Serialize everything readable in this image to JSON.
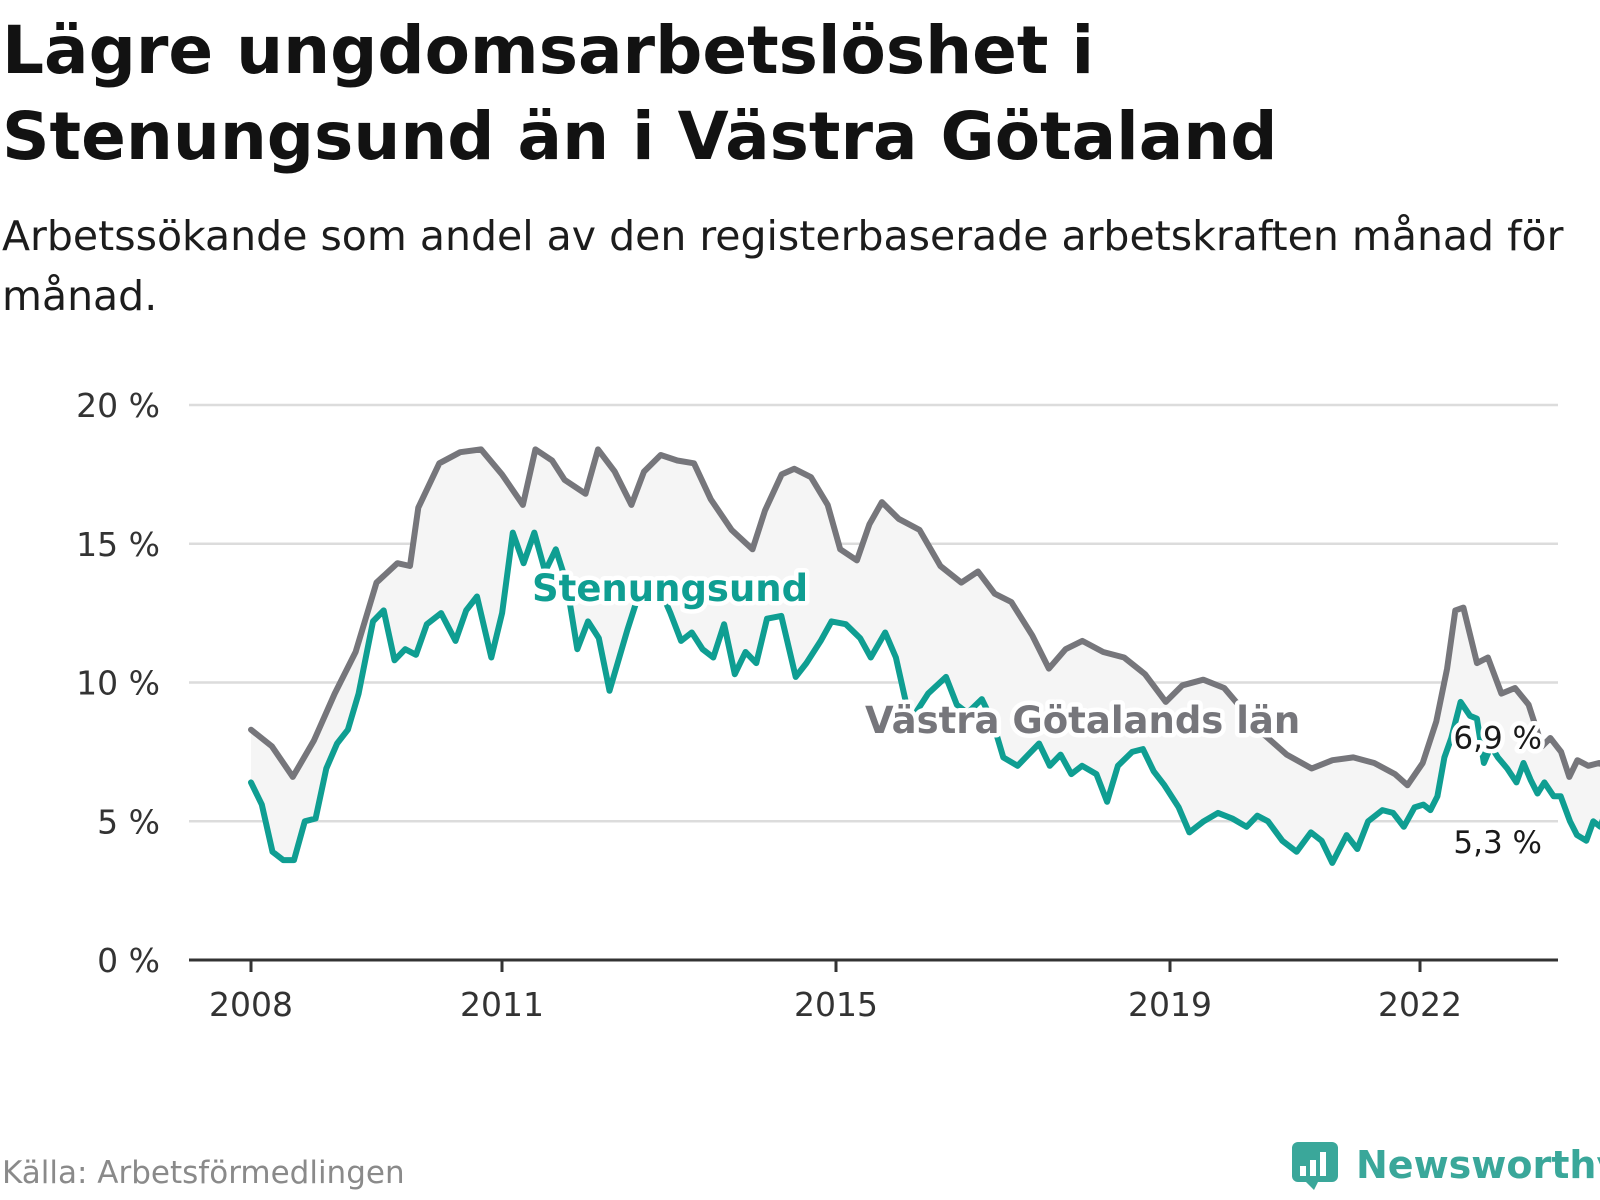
{
  "title": "Lägre ungdomsarbetslöshet i Stenungsund än i Västra Götaland",
  "subtitle": "Arbetssökande som andel av den registerbaserade arbetskraften månad för månad.",
  "source": "Källa: Arbetsförmedlingen",
  "brand": "Newsworthy",
  "colors": {
    "stenungsund": "#0f9e92",
    "vastra": "#76767b",
    "grid": "#dcdcdc",
    "band": "#f5f5f5",
    "brand": "#3aa79a"
  },
  "chart_data": {
    "type": "line",
    "title": "Lägre ungdomsarbetslöshet i Stenungsund än i Västra Götaland",
    "xlabel": "",
    "ylabel": "",
    "ylim": [
      0,
      20
    ],
    "yticks": [
      0,
      5,
      10,
      15,
      20
    ],
    "ytick_labels": [
      "0 %",
      "5 %",
      "10 %",
      "15 %",
      "20 %"
    ],
    "xticks": [
      2008,
      2011,
      2015,
      2019,
      2022
    ],
    "xtick_labels": [
      "2008",
      "2011",
      "2015",
      "2019",
      "2022"
    ],
    "series": [
      {
        "name": "Västra Götalands län",
        "label": "Västra Götalands län",
        "end_label": "6,9 %",
        "points": [
          [
            2008.0,
            8.3
          ],
          [
            2008.25,
            7.7
          ],
          [
            2008.5,
            6.6
          ],
          [
            2008.75,
            7.9
          ],
          [
            2009.0,
            9.6
          ],
          [
            2009.25,
            11.1
          ],
          [
            2009.5,
            13.6
          ],
          [
            2009.75,
            14.3
          ],
          [
            2009.9,
            14.2
          ],
          [
            2010.0,
            16.3
          ],
          [
            2010.25,
            17.9
          ],
          [
            2010.5,
            18.3
          ],
          [
            2010.75,
            18.4
          ],
          [
            2011.0,
            17.5
          ],
          [
            2011.25,
            16.4
          ],
          [
            2011.4,
            18.4
          ],
          [
            2011.6,
            18.0
          ],
          [
            2011.75,
            17.3
          ],
          [
            2012.0,
            16.8
          ],
          [
            2012.15,
            18.4
          ],
          [
            2012.35,
            17.6
          ],
          [
            2012.55,
            16.4
          ],
          [
            2012.7,
            17.6
          ],
          [
            2012.9,
            18.2
          ],
          [
            2013.1,
            18.0
          ],
          [
            2013.3,
            17.9
          ],
          [
            2013.5,
            16.6
          ],
          [
            2013.75,
            15.5
          ],
          [
            2014.0,
            14.8
          ],
          [
            2014.15,
            16.2
          ],
          [
            2014.35,
            17.5
          ],
          [
            2014.5,
            17.7
          ],
          [
            2014.7,
            17.4
          ],
          [
            2014.9,
            16.4
          ],
          [
            2015.05,
            14.8
          ],
          [
            2015.25,
            14.4
          ],
          [
            2015.4,
            15.7
          ],
          [
            2015.55,
            16.5
          ],
          [
            2015.75,
            15.9
          ],
          [
            2016.0,
            15.5
          ],
          [
            2016.25,
            14.2
          ],
          [
            2016.5,
            13.6
          ],
          [
            2016.7,
            14.0
          ],
          [
            2016.9,
            13.2
          ],
          [
            2017.1,
            12.9
          ],
          [
            2017.35,
            11.7
          ],
          [
            2017.55,
            10.5
          ],
          [
            2017.75,
            11.2
          ],
          [
            2017.95,
            11.5
          ],
          [
            2018.2,
            11.1
          ],
          [
            2018.45,
            10.9
          ],
          [
            2018.7,
            10.3
          ],
          [
            2018.95,
            9.3
          ],
          [
            2019.15,
            9.9
          ],
          [
            2019.4,
            10.1
          ],
          [
            2019.65,
            9.8
          ],
          [
            2019.85,
            9.1
          ],
          [
            2020.1,
            8.2
          ],
          [
            2020.4,
            7.4
          ],
          [
            2020.7,
            6.9
          ],
          [
            2020.95,
            7.2
          ],
          [
            2021.2,
            7.3
          ],
          [
            2021.45,
            7.1
          ],
          [
            2021.7,
            6.7
          ],
          [
            2021.85,
            6.3
          ],
          [
            2022.05,
            7.1
          ],
          [
            2022.3,
            8.6
          ],
          [
            2022.5,
            10.5
          ],
          [
            2022.65,
            12.6
          ],
          [
            2022.8,
            12.7
          ],
          [
            2023.05,
            10.7
          ],
          [
            2023.25,
            10.9
          ],
          [
            2023.5,
            9.6
          ],
          [
            2023.75,
            9.8
          ],
          [
            2024.0,
            9.2
          ],
          [
            2024.25,
            7.7
          ],
          [
            2024.4,
            8.0
          ],
          [
            2024.6,
            7.5
          ],
          [
            2024.75,
            6.6
          ],
          [
            2024.9,
            7.2
          ],
          [
            2025.1,
            7.0
          ],
          [
            2025.3,
            7.1
          ],
          [
            2025.5,
            6.9
          ],
          [
            2025.75,
            6.9
          ]
        ]
      },
      {
        "name": "Stenungsund",
        "label": "Stenungsund",
        "end_label": "5,3 %",
        "points": [
          [
            2008.0,
            6.4
          ],
          [
            2008.15,
            5.6
          ],
          [
            2008.3,
            3.9
          ],
          [
            2008.45,
            3.6
          ],
          [
            2008.6,
            3.6
          ],
          [
            2008.75,
            5.0
          ],
          [
            2008.9,
            5.1
          ],
          [
            2009.05,
            6.9
          ],
          [
            2009.2,
            7.8
          ],
          [
            2009.35,
            8.3
          ],
          [
            2009.5,
            9.6
          ],
          [
            2009.7,
            12.2
          ],
          [
            2009.85,
            12.6
          ],
          [
            2010.0,
            10.8
          ],
          [
            2010.15,
            11.2
          ],
          [
            2010.3,
            11.0
          ],
          [
            2010.45,
            12.1
          ],
          [
            2010.65,
            12.5
          ],
          [
            2010.85,
            11.5
          ],
          [
            2011.0,
            12.6
          ],
          [
            2011.15,
            13.1
          ],
          [
            2011.35,
            10.9
          ],
          [
            2011.5,
            12.5
          ],
          [
            2011.65,
            15.4
          ],
          [
            2011.8,
            14.3
          ],
          [
            2011.95,
            15.4
          ],
          [
            2012.1,
            14.0
          ],
          [
            2012.25,
            14.8
          ],
          [
            2012.4,
            13.6
          ],
          [
            2012.55,
            11.2
          ],
          [
            2012.7,
            12.2
          ],
          [
            2012.85,
            11.6
          ],
          [
            2013.0,
            9.7
          ],
          [
            2013.25,
            11.9
          ],
          [
            2013.45,
            13.5
          ],
          [
            2013.65,
            13.7
          ],
          [
            2013.85,
            12.5
          ],
          [
            2014.0,
            11.5
          ],
          [
            2014.15,
            11.8
          ],
          [
            2014.3,
            11.2
          ],
          [
            2014.45,
            10.9
          ],
          [
            2014.6,
            12.1
          ],
          [
            2014.75,
            10.3
          ],
          [
            2014.9,
            11.1
          ],
          [
            2015.05,
            10.7
          ],
          [
            2015.2,
            12.3
          ],
          [
            2015.4,
            12.4
          ],
          [
            2015.6,
            10.2
          ],
          [
            2015.75,
            10.7
          ],
          [
            2015.95,
            11.5
          ],
          [
            2016.1,
            12.2
          ],
          [
            2016.3,
            12.1
          ],
          [
            2016.5,
            11.6
          ],
          [
            2016.65,
            10.9
          ],
          [
            2016.85,
            11.8
          ],
          [
            2017.0,
            10.9
          ],
          [
            2017.2,
            8.6
          ],
          [
            2017.45,
            9.6
          ],
          [
            2017.7,
            10.2
          ],
          [
            2017.85,
            9.2
          ],
          [
            2018.0,
            8.9
          ],
          [
            2018.2,
            9.4
          ],
          [
            2018.35,
            8.6
          ],
          [
            2018.5,
            7.3
          ],
          [
            2018.7,
            7.0
          ],
          [
            2018.85,
            7.4
          ],
          [
            2019.0,
            7.8
          ],
          [
            2019.15,
            7.0
          ],
          [
            2019.3,
            7.4
          ],
          [
            2019.45,
            6.7
          ],
          [
            2019.6,
            7.0
          ],
          [
            2019.8,
            6.7
          ],
          [
            2019.95,
            5.7
          ],
          [
            2020.1,
            7.0
          ],
          [
            2020.3,
            7.5
          ],
          [
            2020.45,
            7.6
          ],
          [
            2020.6,
            6.8
          ],
          [
            2020.75,
            6.3
          ],
          [
            2020.95,
            5.5
          ],
          [
            2021.1,
            4.6
          ],
          [
            2021.3,
            5.0
          ],
          [
            2021.5,
            5.3
          ],
          [
            2021.7,
            5.1
          ],
          [
            2021.9,
            4.8
          ],
          [
            2022.05,
            5.2
          ],
          [
            2022.2,
            5.0
          ],
          [
            2022.4,
            4.3
          ],
          [
            2022.6,
            3.9
          ],
          [
            2022.8,
            4.6
          ],
          [
            2022.95,
            4.3
          ],
          [
            2023.1,
            3.5
          ],
          [
            2023.3,
            4.5
          ],
          [
            2023.45,
            4.0
          ],
          [
            2023.6,
            5.0
          ],
          [
            2023.8,
            5.4
          ],
          [
            2023.95,
            5.3
          ],
          [
            2024.1,
            4.8
          ],
          [
            2024.25,
            5.5
          ],
          [
            2024.4,
            5.6
          ],
          [
            2024.55,
            5.4
          ],
          [
            2024.7,
            5.9
          ],
          [
            2024.85,
            7.3
          ],
          [
            2025.0,
            8.0
          ],
          [
            2025.2,
            9.3
          ],
          [
            2025.4,
            8.8
          ],
          [
            2025.55,
            8.7
          ],
          [
            2025.7,
            7.1
          ],
          [
            2025.85,
            7.7
          ],
          [
            2026.0,
            7.3
          ],
          [
            2026.2,
            6.9
          ],
          [
            2026.4,
            6.4
          ],
          [
            2026.55,
            7.1
          ],
          [
            2026.7,
            6.5
          ],
          [
            2026.85,
            6.0
          ],
          [
            2027.0,
            6.4
          ],
          [
            2027.2,
            5.9
          ],
          [
            2027.35,
            5.9
          ],
          [
            2027.55,
            5.0
          ],
          [
            2027.7,
            4.5
          ],
          [
            2027.9,
            4.3
          ],
          [
            2028.05,
            5.0
          ],
          [
            2028.2,
            4.8
          ],
          [
            2028.35,
            5.5
          ],
          [
            2028.5,
            5.3
          ],
          [
            2028.7,
            5.3
          ]
        ]
      }
    ]
  }
}
